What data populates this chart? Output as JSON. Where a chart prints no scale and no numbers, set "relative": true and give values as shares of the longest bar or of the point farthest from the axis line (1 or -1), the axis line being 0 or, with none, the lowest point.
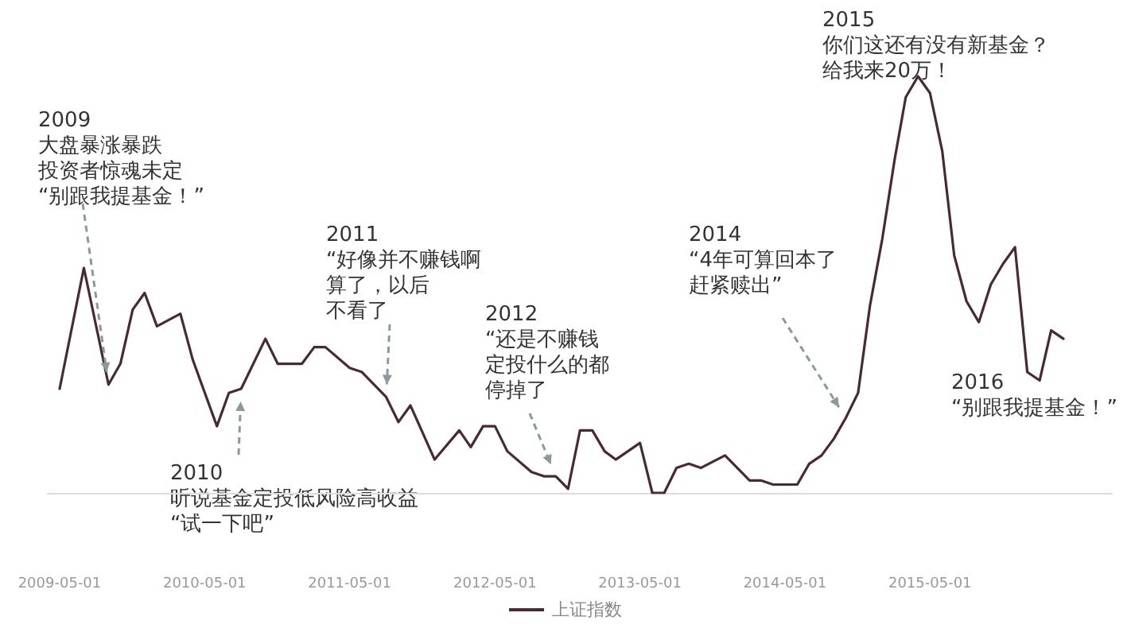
{
  "chart_data": {
    "type": "line",
    "relative": true,
    "legend": "bottom",
    "grid": false,
    "marker": "none",
    "line_style": "solid",
    "x": [
      "2009-05",
      "2009-07",
      "2009-09",
      "2009-10",
      "2009-11",
      "2009-12",
      "2010-01",
      "2010-03",
      "2010-04",
      "2010-06",
      "2010-07",
      "2010-08",
      "2010-10",
      "2010-11",
      "2011-01",
      "2011-02",
      "2011-03",
      "2011-05",
      "2011-06",
      "2011-08",
      "2011-09",
      "2011-10",
      "2011-12",
      "2012-02",
      "2012-03",
      "2012-04",
      "2012-05",
      "2012-06",
      "2012-08",
      "2012-09",
      "2012-10",
      "2012-11",
      "2012-12",
      "2013-01",
      "2013-02",
      "2013-03",
      "2013-05",
      "2013-06",
      "2013-07",
      "2013-08",
      "2013-09",
      "2013-10",
      "2013-12",
      "2014-01",
      "2014-02",
      "2014-03",
      "2014-04",
      "2014-06",
      "2014-07",
      "2014-08",
      "2014-09",
      "2014-10",
      "2014-11",
      "2014-12",
      "2015-01",
      "2015-02",
      "2015-03",
      "2015-04",
      "2015-05",
      "2015-06",
      "2015-07",
      "2015-08",
      "2015-09",
      "2015-10",
      "2015-11",
      "2015-12",
      "2016-01",
      "2016-02",
      "2016-03",
      "2016-04"
    ],
    "series": [
      {
        "name": "上证指数",
        "color": "#4a2a32",
        "values": [
          0.25,
          0.54,
          0.26,
          0.31,
          0.44,
          0.48,
          0.4,
          0.43,
          0.32,
          0.16,
          0.24,
          0.25,
          0.37,
          0.31,
          0.31,
          0.35,
          0.35,
          0.3,
          0.29,
          0.23,
          0.17,
          0.21,
          0.08,
          0.15,
          0.11,
          0.16,
          0.16,
          0.1,
          0.05,
          0.04,
          0.04,
          0.01,
          0.15,
          0.15,
          0.1,
          0.08,
          0.12,
          0,
          0,
          0.06,
          0.07,
          0.06,
          0.09,
          0.06,
          0.03,
          0.03,
          0.02,
          0.02,
          0.07,
          0.09,
          0.13,
          0.18,
          0.24,
          0.45,
          0.61,
          0.8,
          0.95,
          1,
          0.96,
          0.82,
          0.57,
          0.46,
          0.41,
          0.5,
          0.55,
          0.59,
          0.29,
          0.27,
          0.39,
          0.37
        ]
      }
    ],
    "xlim": [
      "2009-04-01",
      "2016-08-01"
    ],
    "xticks": [
      "2009-05-01",
      "2010-05-01",
      "2011-05-01",
      "2012-05-01",
      "2013-05-01",
      "2014-05-01",
      "2015-05-01"
    ],
    "annotations": [
      {
        "text": "2009\n大盘暴涨暴跌投资者惊魂未定“别跟我提基金！”",
        "x": "2009-09",
        "y": 0.26
      },
      {
        "text": "2010\n听说基金定投低风险高收益“试一下吧”",
        "x": "2010-08",
        "y": 0.25
      },
      {
        "text": "2011\n“好像并不赚钱啊算了，以后不看了",
        "x": "2011-08",
        "y": 0.23
      },
      {
        "text": "2012\n“还是不赚钱定投什么的都停掉了",
        "x": "2012-10",
        "y": 0.04
      },
      {
        "text": "2014\n“4年可算回本了赶紧赎出”",
        "x": "2014-10",
        "y": 0.18
      },
      "2015\n你们这还有没有新基金？给我来20万！",
      "2016\n“别跟我提基金！”"
    ]
  }
}
